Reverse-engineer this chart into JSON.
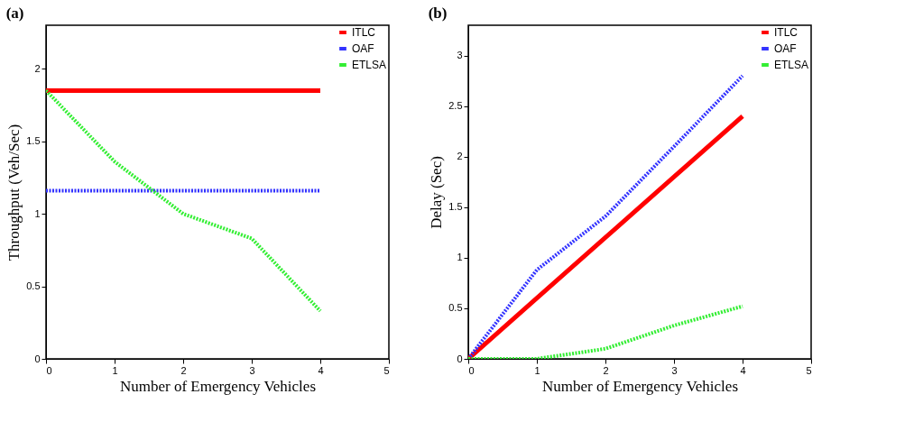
{
  "chart_data": [
    {
      "type": "line",
      "title": "(a)",
      "xlabel": "Number of Emergency Vehicles",
      "ylabel": "Throughput (Veh/Sec)",
      "x": [
        0,
        1,
        2,
        3,
        4
      ],
      "xlim": [
        0,
        5
      ],
      "xticks": [
        0,
        1,
        2,
        3,
        4,
        5
      ],
      "ylim": [
        0,
        2.3
      ],
      "yticks": [
        0,
        0.5,
        1,
        1.5,
        2
      ],
      "grid": false,
      "legend": "top right",
      "series": [
        {
          "name": "ITLC",
          "color": "#ff0000",
          "line_style": "solid",
          "values": [
            1.85,
            1.85,
            1.85,
            1.85,
            1.85
          ]
        },
        {
          "name": "OAF",
          "color": "#3333ff",
          "line_style": "dotted",
          "values": [
            1.16,
            1.16,
            1.16,
            1.16,
            1.16
          ]
        },
        {
          "name": "ETLSA",
          "color": "#33ee33",
          "line_style": "dotted",
          "values": [
            1.85,
            1.36,
            1.0,
            0.83,
            0.33
          ]
        }
      ]
    },
    {
      "type": "line",
      "title": "(b)",
      "xlabel": "Number of Emergency Vehicles",
      "ylabel": "Delay (Sec)",
      "x": [
        0,
        1,
        2,
        3,
        4
      ],
      "xlim": [
        0,
        5
      ],
      "xticks": [
        0,
        1,
        2,
        3,
        4,
        5
      ],
      "ylim": [
        0,
        3.3
      ],
      "yticks": [
        0,
        0.5,
        1,
        1.5,
        2,
        2.5,
        3
      ],
      "grid": false,
      "legend": "top right",
      "series": [
        {
          "name": "ITLC",
          "color": "#ff0000",
          "line_style": "solid",
          "values": [
            0,
            0.6,
            1.2,
            1.8,
            2.4
          ]
        },
        {
          "name": "OAF",
          "color": "#3333ff",
          "line_style": "dotted",
          "values": [
            0,
            0.88,
            1.41,
            2.1,
            2.8
          ]
        },
        {
          "name": "ETLSA",
          "color": "#33ee33",
          "line_style": "dotted",
          "values": [
            0,
            0,
            0.1,
            0.33,
            0.52
          ]
        }
      ]
    }
  ]
}
